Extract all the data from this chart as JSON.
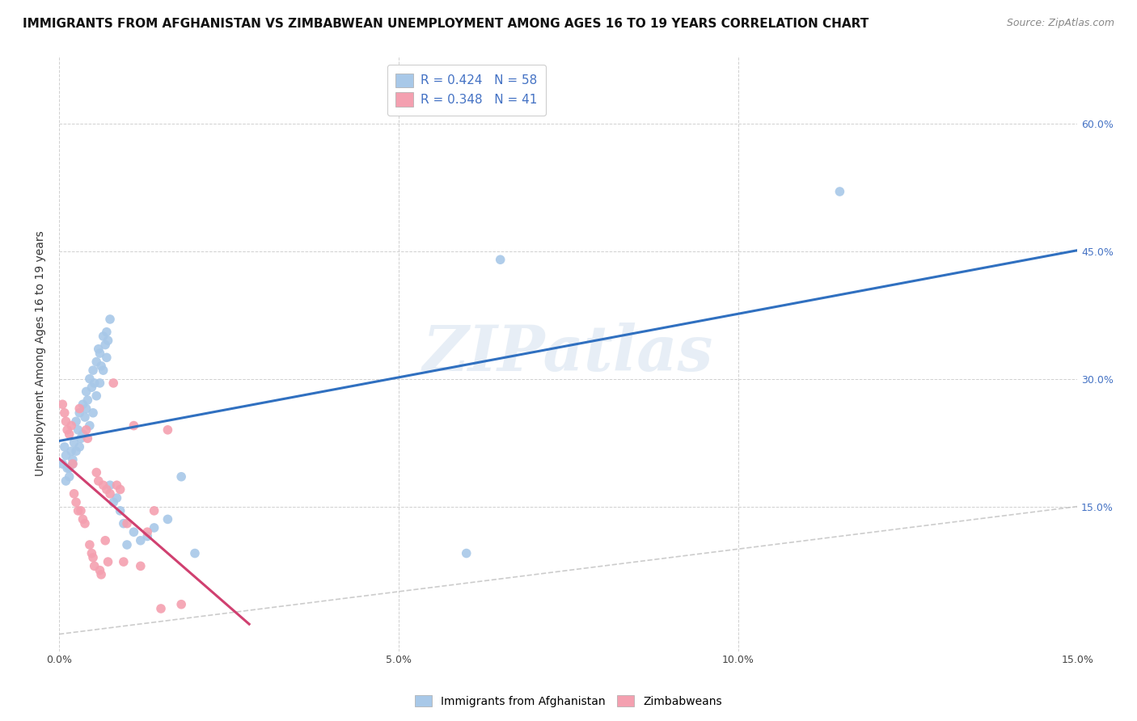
{
  "title": "IMMIGRANTS FROM AFGHANISTAN VS ZIMBABWEAN UNEMPLOYMENT AMONG AGES 16 TO 19 YEARS CORRELATION CHART",
  "source": "Source: ZipAtlas.com",
  "ylabel": "Unemployment Among Ages 16 to 19 years",
  "xlim": [
    0,
    0.15
  ],
  "ylim": [
    -0.02,
    0.68
  ],
  "plot_ylim": [
    0,
    0.65
  ],
  "xticks": [
    0.0,
    0.05,
    0.1,
    0.15
  ],
  "xtick_labels": [
    "0.0%",
    "5.0%",
    "10.0%",
    "15.0%"
  ],
  "yticks": [
    0.15,
    0.3,
    0.45,
    0.6
  ],
  "ytick_labels": [
    "15.0%",
    "30.0%",
    "45.0%",
    "60.0%"
  ],
  "legend_labels": [
    "Immigrants from Afghanistan",
    "Zimbabweans"
  ],
  "blue_color": "#a8c8e8",
  "pink_color": "#f4a0b0",
  "blue_line_color": "#3070c0",
  "pink_line_color": "#d04070",
  "dashed_line_color": "#c0c0c0",
  "watermark": "ZIPatlas",
  "watermark_color": "#d8e4f0",
  "afghanistan_x": [
    0.0005,
    0.0008,
    0.001,
    0.0012,
    0.0015,
    0.0018,
    0.002,
    0.0022,
    0.0025,
    0.0028,
    0.003,
    0.0032,
    0.0035,
    0.0038,
    0.004,
    0.0042,
    0.0045,
    0.0048,
    0.005,
    0.0052,
    0.0055,
    0.0058,
    0.006,
    0.0062,
    0.0065,
    0.0068,
    0.007,
    0.0072,
    0.0075,
    0.001,
    0.0015,
    0.002,
    0.0025,
    0.003,
    0.0035,
    0.004,
    0.0045,
    0.005,
    0.0055,
    0.006,
    0.0065,
    0.007,
    0.0075,
    0.008,
    0.0085,
    0.009,
    0.0095,
    0.01,
    0.011,
    0.012,
    0.013,
    0.014,
    0.016,
    0.018,
    0.02,
    0.06,
    0.065,
    0.115
  ],
  "afghanistan_y": [
    0.2,
    0.22,
    0.21,
    0.195,
    0.185,
    0.215,
    0.205,
    0.225,
    0.25,
    0.24,
    0.26,
    0.23,
    0.27,
    0.255,
    0.285,
    0.275,
    0.3,
    0.29,
    0.31,
    0.295,
    0.32,
    0.335,
    0.33,
    0.315,
    0.35,
    0.34,
    0.355,
    0.345,
    0.37,
    0.18,
    0.195,
    0.2,
    0.215,
    0.22,
    0.235,
    0.265,
    0.245,
    0.26,
    0.28,
    0.295,
    0.31,
    0.325,
    0.175,
    0.155,
    0.16,
    0.145,
    0.13,
    0.105,
    0.12,
    0.11,
    0.115,
    0.125,
    0.135,
    0.185,
    0.095,
    0.095,
    0.44,
    0.52
  ],
  "zimbabwe_x": [
    0.0005,
    0.0008,
    0.001,
    0.0012,
    0.0015,
    0.0018,
    0.002,
    0.0022,
    0.0025,
    0.0028,
    0.003,
    0.0032,
    0.0035,
    0.0038,
    0.004,
    0.0042,
    0.0045,
    0.0048,
    0.005,
    0.0052,
    0.0055,
    0.0058,
    0.006,
    0.0062,
    0.0065,
    0.0068,
    0.007,
    0.0072,
    0.0075,
    0.008,
    0.0085,
    0.009,
    0.0095,
    0.01,
    0.011,
    0.012,
    0.013,
    0.014,
    0.015,
    0.016,
    0.018
  ],
  "zimbabwe_y": [
    0.27,
    0.26,
    0.25,
    0.24,
    0.235,
    0.245,
    0.2,
    0.165,
    0.155,
    0.145,
    0.265,
    0.145,
    0.135,
    0.13,
    0.24,
    0.23,
    0.105,
    0.095,
    0.09,
    0.08,
    0.19,
    0.18,
    0.075,
    0.07,
    0.175,
    0.11,
    0.17,
    0.085,
    0.165,
    0.295,
    0.175,
    0.17,
    0.085,
    0.13,
    0.245,
    0.08,
    0.12,
    0.145,
    0.03,
    0.24,
    0.035
  ],
  "title_fontsize": 11,
  "source_fontsize": 9,
  "axis_fontsize": 9,
  "ylabel_fontsize": 10,
  "right_tick_color": "#4472c4"
}
